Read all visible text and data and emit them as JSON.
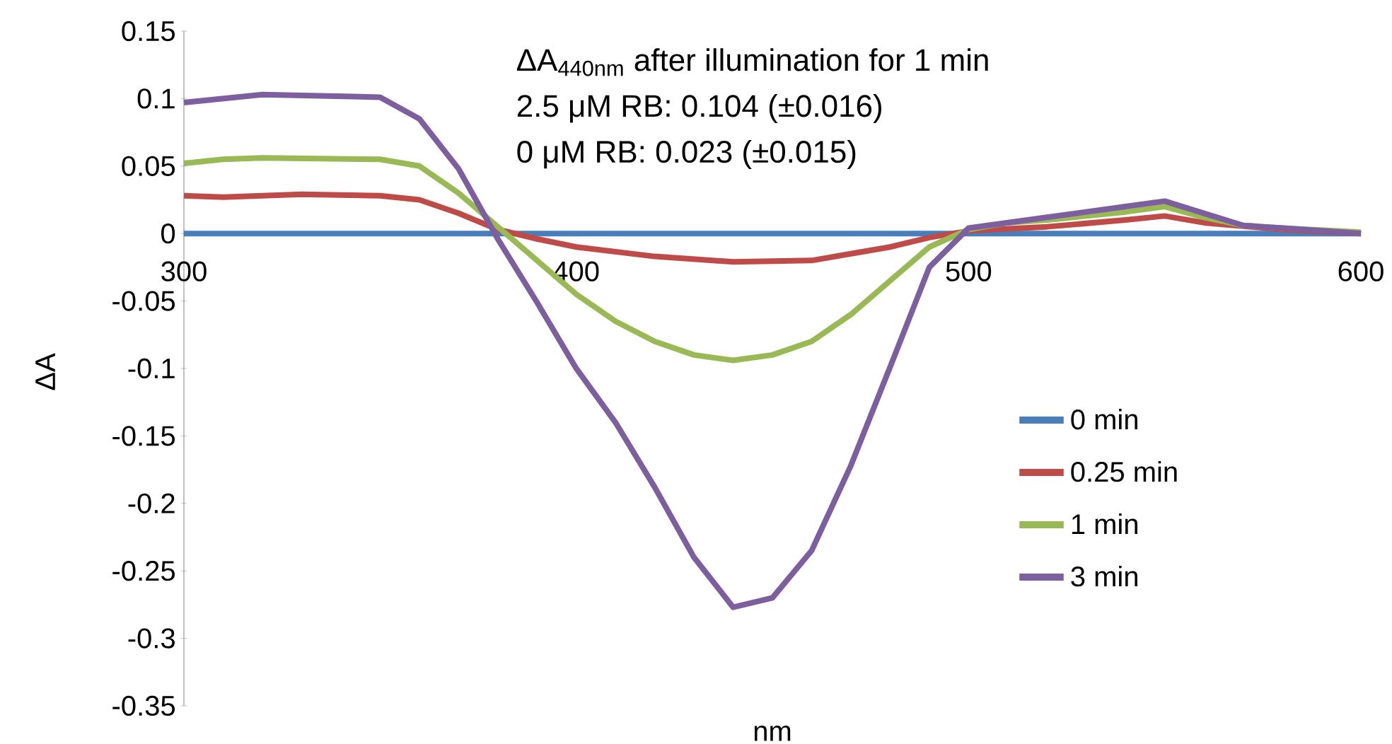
{
  "chart_data": {
    "type": "line",
    "xlabel": "nm",
    "ylabel": "ΔA",
    "annotations": [
      "ΔA$_{440nm}$ after illumination for 1 min",
      "2.5 μM RB: 0.104 (±0.016)",
      "0 μM RB: 0.023 (±0.015)"
    ],
    "xlim": [
      300,
      600
    ],
    "xticks": [
      300,
      400,
      500,
      600
    ],
    "ylim": [
      -0.35,
      0.15
    ],
    "yticks": [
      -0.35,
      -0.3,
      -0.25,
      -0.2,
      -0.15,
      -0.1,
      -0.05,
      0,
      0.05,
      0.1,
      0.15
    ],
    "legend": "bottom right",
    "series": [
      {
        "name": "0 min",
        "color": "#4a7ebb",
        "x": [
          300,
          350,
          400,
          450,
          500,
          550,
          600
        ],
        "values": [
          0,
          0,
          0,
          0,
          0,
          0,
          0
        ]
      },
      {
        "name": "0.25 min",
        "color": "#be4b48",
        "x": [
          300,
          310,
          330,
          350,
          360,
          370,
          380,
          390,
          400,
          420,
          440,
          460,
          470,
          480,
          490,
          500,
          520,
          540,
          550,
          560,
          580,
          600
        ],
        "values": [
          0.028,
          0.027,
          0.029,
          0.028,
          0.025,
          0.015,
          0.003,
          -0.004,
          -0.01,
          -0.017,
          -0.021,
          -0.02,
          -0.015,
          -0.01,
          -0.003,
          0.002,
          0.005,
          0.01,
          0.013,
          0.008,
          0.003,
          0.0
        ]
      },
      {
        "name": "1 min",
        "color": "#98b954",
        "x": [
          300,
          310,
          320,
          350,
          360,
          370,
          380,
          390,
          400,
          410,
          420,
          430,
          440,
          450,
          460,
          470,
          480,
          490,
          500,
          510,
          520,
          540,
          550,
          560,
          570,
          580,
          600
        ],
        "values": [
          0.052,
          0.055,
          0.056,
          0.055,
          0.05,
          0.03,
          0.005,
          -0.02,
          -0.045,
          -0.065,
          -0.08,
          -0.09,
          -0.094,
          -0.09,
          -0.08,
          -0.06,
          -0.035,
          -0.01,
          0.003,
          0.008,
          0.01,
          0.016,
          0.02,
          0.012,
          0.006,
          0.004,
          0.001
        ]
      },
      {
        "name": "3 min",
        "color": "#7d5fa0",
        "x": [
          300,
          320,
          350,
          360,
          370,
          380,
          390,
          400,
          410,
          420,
          430,
          440,
          450,
          460,
          470,
          480,
          490,
          500,
          520,
          540,
          550,
          560,
          570,
          580,
          600
        ],
        "values": [
          0.097,
          0.103,
          0.101,
          0.085,
          0.048,
          -0.004,
          -0.051,
          -0.1,
          -0.14,
          -0.188,
          -0.24,
          -0.277,
          -0.27,
          -0.235,
          -0.172,
          -0.099,
          -0.025,
          0.004,
          0.012,
          0.02,
          0.024,
          0.015,
          0.006,
          0.004,
          0.0
        ]
      }
    ]
  }
}
